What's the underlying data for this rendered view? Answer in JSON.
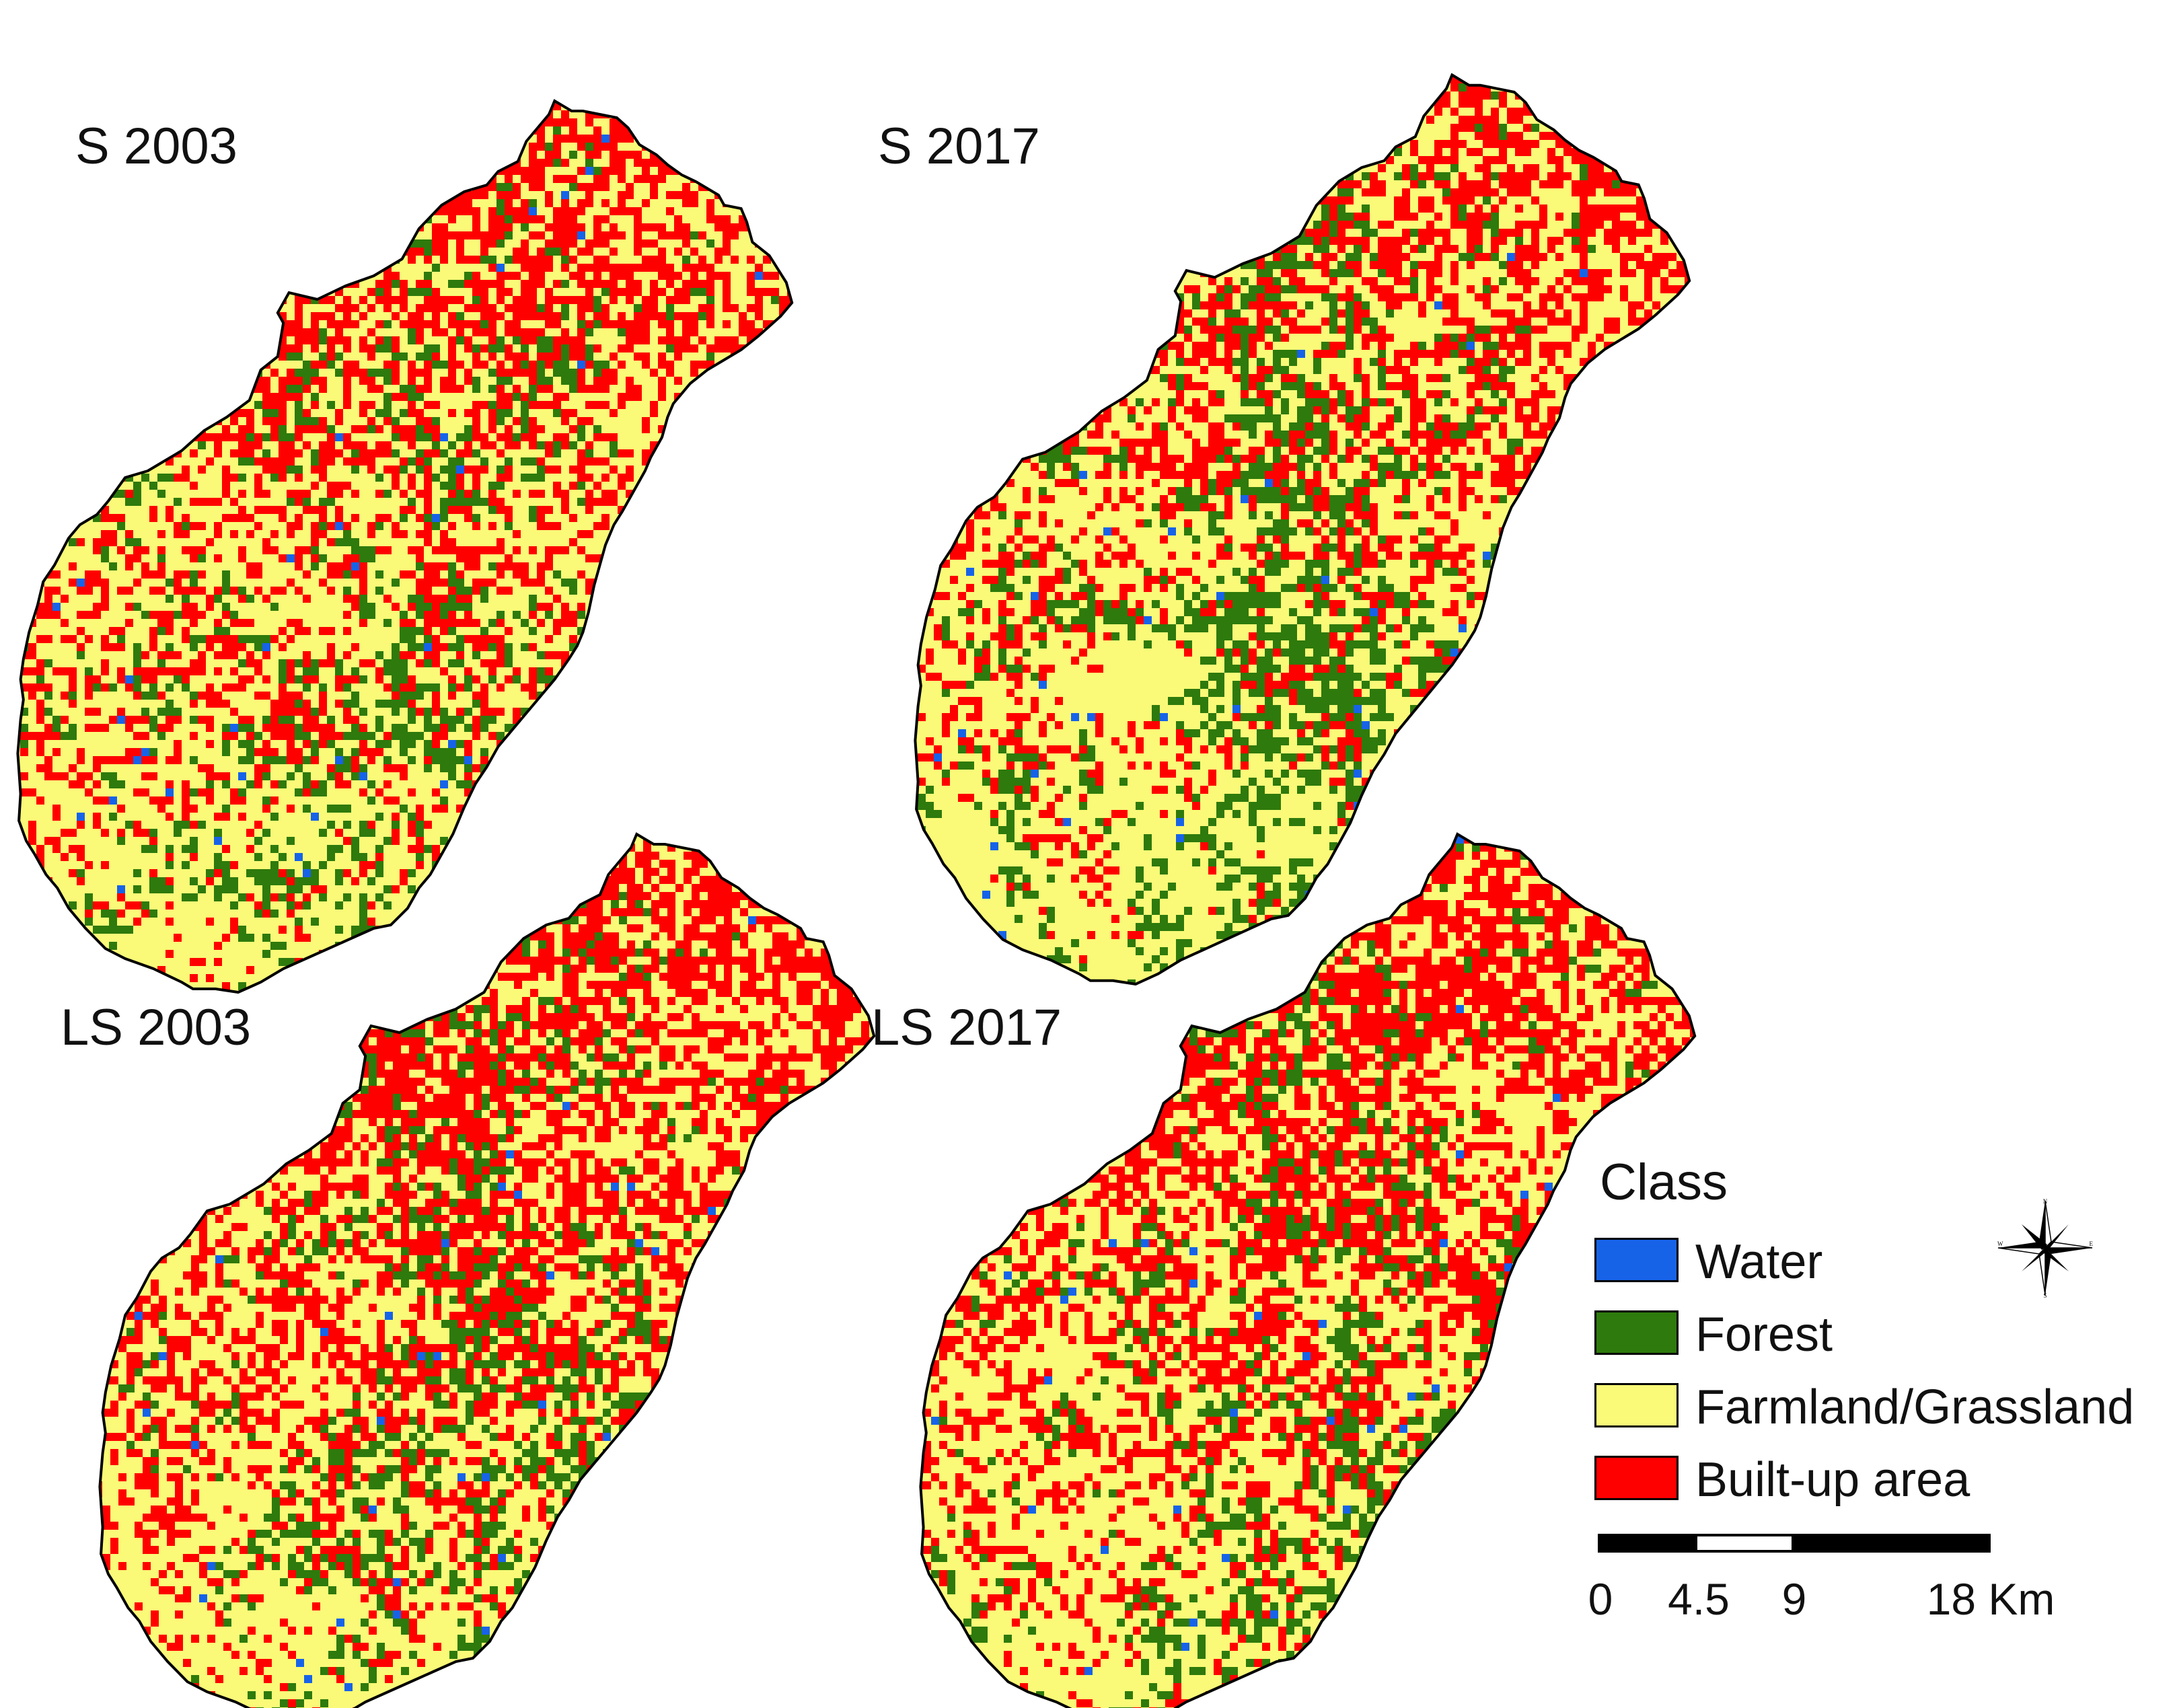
{
  "maps": [
    {
      "title": "S 2003"
    },
    {
      "title": "S 2017"
    },
    {
      "title": "LS 2003"
    },
    {
      "title": "LS 2017"
    }
  ],
  "legend": {
    "title": "Class",
    "items": [
      {
        "label": "Water",
        "color": "#1763e8"
      },
      {
        "label": "Forest",
        "color": "#2e7a0c"
      },
      {
        "label": "Farmland/Grassland",
        "color": "#fafa78"
      },
      {
        "label": "Built-up area",
        "color": "#ff0000"
      }
    ]
  },
  "scale": {
    "ticks": [
      "0",
      "4.5",
      "9",
      "18 Km"
    ],
    "tick_values": [
      0,
      4.5,
      9,
      18
    ]
  },
  "compass": {
    "n": "N",
    "s": "S",
    "e": "E",
    "w": "W"
  }
}
